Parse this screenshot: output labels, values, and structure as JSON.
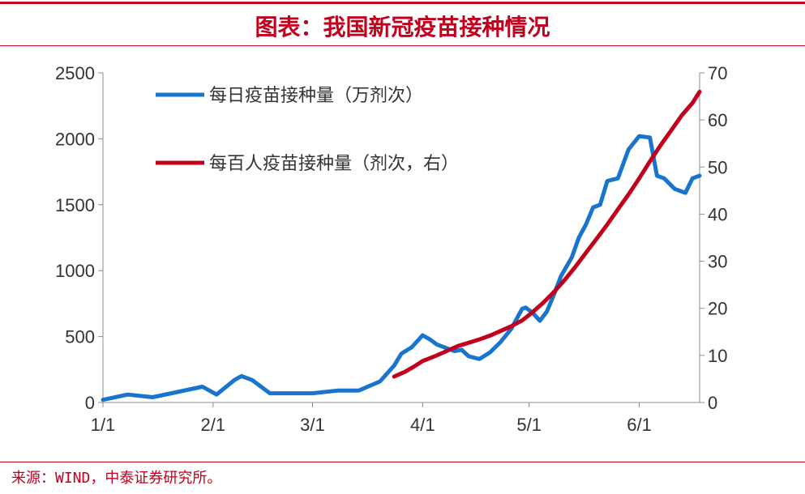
{
  "header": {
    "title": "图表：我国新冠疫苗接种情况"
  },
  "footer": {
    "source": "来源：WIND，中泰证券研究所。"
  },
  "colors": {
    "accent": "#c0001c",
    "daily": "#1874cd",
    "per_hundred": "#c0001c"
  },
  "chart_data": {
    "type": "line",
    "title": "图表：我国新冠疫苗接种情况",
    "x_ticks": [
      "1/1",
      "2/1",
      "3/1",
      "4/1",
      "5/1",
      "6/1"
    ],
    "x_tick_day_of_year": [
      1,
      32,
      60,
      91,
      121,
      152
    ],
    "x_range_day_of_year": [
      1,
      169
    ],
    "y_left": {
      "ticks": [
        0,
        500,
        1000,
        1500,
        2000,
        2500
      ],
      "range": [
        0,
        2500
      ]
    },
    "y_right": {
      "ticks": [
        0,
        10,
        20,
        30,
        40,
        50,
        60,
        70
      ],
      "range": [
        0,
        70
      ]
    },
    "grid": false,
    "legend_position": "top-left",
    "series": [
      {
        "name": "每日疫苗接种量（万剂次）",
        "axis": "left",
        "x": [
          1,
          8,
          15,
          22,
          29,
          33,
          38,
          40,
          43,
          48,
          54,
          60,
          67,
          73,
          79,
          83,
          85,
          88,
          91,
          93,
          95,
          98,
          100,
          102,
          104,
          107,
          110,
          113,
          116,
          119,
          120,
          122,
          124,
          126,
          128,
          130,
          133,
          135,
          137,
          139,
          141,
          143,
          146,
          149,
          152,
          155,
          157,
          159,
          162,
          165,
          167,
          169
        ],
        "values": [
          20,
          60,
          40,
          80,
          120,
          60,
          170,
          200,
          170,
          70,
          70,
          70,
          90,
          90,
          160,
          280,
          370,
          420,
          510,
          480,
          440,
          410,
          390,
          400,
          350,
          330,
          380,
          460,
          560,
          710,
          720,
          680,
          620,
          690,
          820,
          960,
          1100,
          1250,
          1350,
          1480,
          1500,
          1680,
          1700,
          1920,
          2020,
          2010,
          1720,
          1700,
          1620,
          1590,
          1700,
          1720
        ]
      },
      {
        "name": "每百人疫苗接种量（剂次，右）",
        "axis": "right",
        "x": [
          83,
          86,
          89,
          91,
          95,
          98,
          101,
          104,
          107,
          110,
          113,
          116,
          119,
          122,
          125,
          128,
          131,
          134,
          137,
          140,
          143,
          146,
          149,
          152,
          155,
          158,
          161,
          164,
          167,
          169
        ],
        "values": [
          5.5,
          6.5,
          7.8,
          8.8,
          10,
          11,
          12,
          12.7,
          13.4,
          14.2,
          15.2,
          16.2,
          17.4,
          19.2,
          21.2,
          23.5,
          26,
          28.8,
          31.8,
          34.8,
          37.8,
          41,
          44.2,
          47.6,
          51.2,
          54.6,
          57.8,
          61,
          63.6,
          66
        ]
      }
    ]
  }
}
